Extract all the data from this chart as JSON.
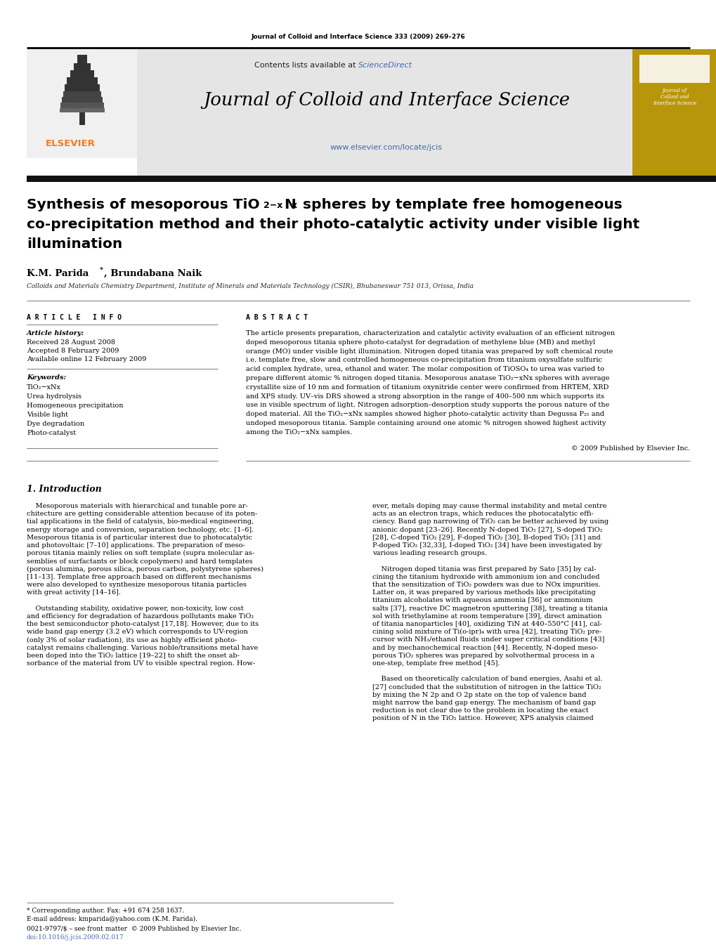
{
  "page_width": 10.2,
  "page_height": 13.51,
  "dpi": 100,
  "bg_color": "#ffffff",
  "journal_ref": "Journal of Colloid and Interface Science 333 (2009) 269–276",
  "header_bg": "#e5e5e5",
  "header_text1_pre": "Contents lists available at ",
  "header_text1_link": "ScienceDirect",
  "header_journal": "Journal of Colloid and Interface Science",
  "header_url": "www.elsevier.com/locate/jcis",
  "elsevier_color": "#f47920",
  "sciencedirect_color": "#4169b0",
  "url_color": "#4169b0",
  "gold_box_color": "#b8960c",
  "gold_text_color": "#ffffff",
  "article_title_line1": "Synthesis of mesoporous TiO",
  "article_title_sub1": "2−x",
  "article_title_mid1": "N",
  "article_title_sub2": "x",
  "article_title_rest1": " spheres by template free homogeneous",
  "article_title_line2": "co-precipitation method and their photo-catalytic activity under visible light",
  "article_title_line3": "illumination",
  "authors": "K.M. Parida",
  "authors_star": "*",
  "authors_rest": ", Brundabana Naik",
  "affiliation": "Colloids and Materials Chemistry Department, Institute of Minerals and Materials Technology (CSIR), Bhubaneswar 751 013, Orissa, India",
  "article_info_header": "ARTICLE   INFO",
  "abstract_header": "ABSTRACT",
  "article_history_label": "Article history:",
  "received": "Received 28 August 2008",
  "accepted": "Accepted 8 February 2009",
  "available": "Available online 12 February 2009",
  "keywords_label": "Keywords:",
  "keywords": [
    "TiO₂−xNx",
    "Urea hydrolysis",
    "Homogeneous precipitation",
    "Visible light",
    "Dye degradation",
    "Photo-catalyst"
  ],
  "copyright": "© 2009 Published by Elsevier Inc.",
  "intro_header": "1. Introduction",
  "footer_text1": "* Corresponding author. Fax: +91 674 258 1637.",
  "footer_text2": "E-mail address: kmparida@yahoo.com (K.M. Parida).",
  "footer_text3": "0021-9797/$ – see front matter  © 2009 Published by Elsevier Inc.",
  "footer_text4": "doi:10.1016/j.jcis.2009.02.017",
  "line_color": "#aaaaaa",
  "thick_line_color": "#000000",
  "body_text_color": "#000000",
  "ref_color": "#4169b0"
}
